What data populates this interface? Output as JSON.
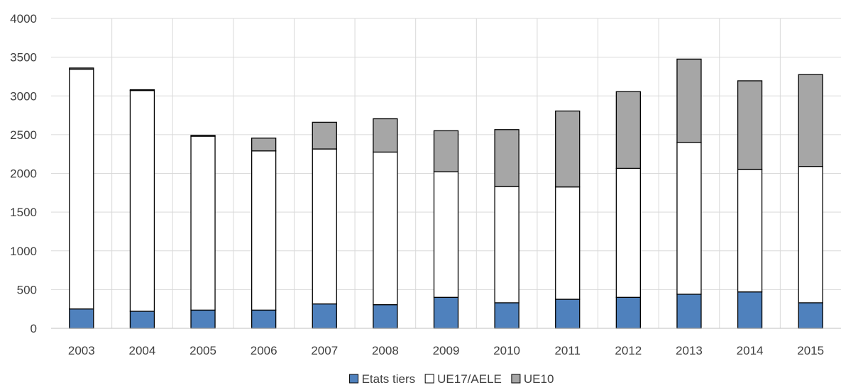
{
  "chart_data": {
    "type": "bar",
    "stacked": true,
    "categories": [
      "2003",
      "2004",
      "2005",
      "2006",
      "2007",
      "2008",
      "2009",
      "2010",
      "2011",
      "2012",
      "2013",
      "2014",
      "2015"
    ],
    "series": [
      {
        "name": "Etats tiers",
        "color": "#4f81bd",
        "values": [
          250,
          220,
          235,
          235,
          315,
          305,
          400,
          330,
          375,
          400,
          440,
          470,
          330
        ]
      },
      {
        "name": "UE17/AELE",
        "color": "#ffffff",
        "values": [
          3095,
          2850,
          2245,
          2055,
          2000,
          1970,
          1620,
          1500,
          1450,
          1665,
          1960,
          1580,
          1760
        ]
      },
      {
        "name": "UE10",
        "color": "#a6a6a6",
        "values": [
          15,
          10,
          10,
          165,
          345,
          430,
          530,
          735,
          980,
          990,
          1075,
          1145,
          1185
        ]
      }
    ],
    "ylim": [
      0,
      4000
    ],
    "yticks": [
      "0",
      "500",
      "1000",
      "1500",
      "2000",
      "2500",
      "3000",
      "3500",
      "4000"
    ],
    "xlabel": "",
    "ylabel": "",
    "grid": true,
    "legend_position": "bottom"
  }
}
